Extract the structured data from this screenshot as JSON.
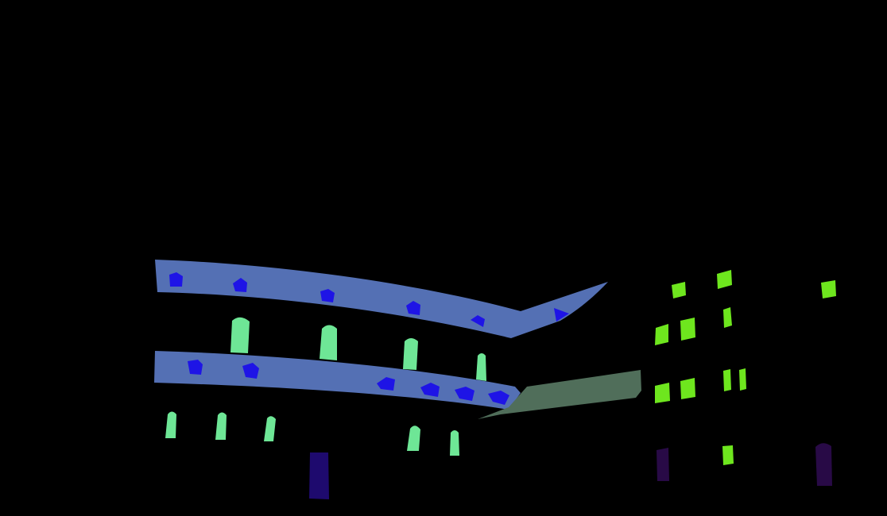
{
  "scene": {
    "kind": "semantic-segmentation-mask",
    "background_color": "#000000",
    "classes": [
      {
        "id": "balcony",
        "color": "#5470b4"
      },
      {
        "id": "balcony-detail",
        "color": "#1e14e6"
      },
      {
        "id": "window-left-building",
        "color": "#6ee696"
      },
      {
        "id": "window-right-building",
        "color": "#6ee61e"
      },
      {
        "id": "awning",
        "color": "#506e5a"
      },
      {
        "id": "door",
        "color": "#1e0a6e"
      },
      {
        "id": "door-dark",
        "color": "#280a46"
      }
    ]
  }
}
